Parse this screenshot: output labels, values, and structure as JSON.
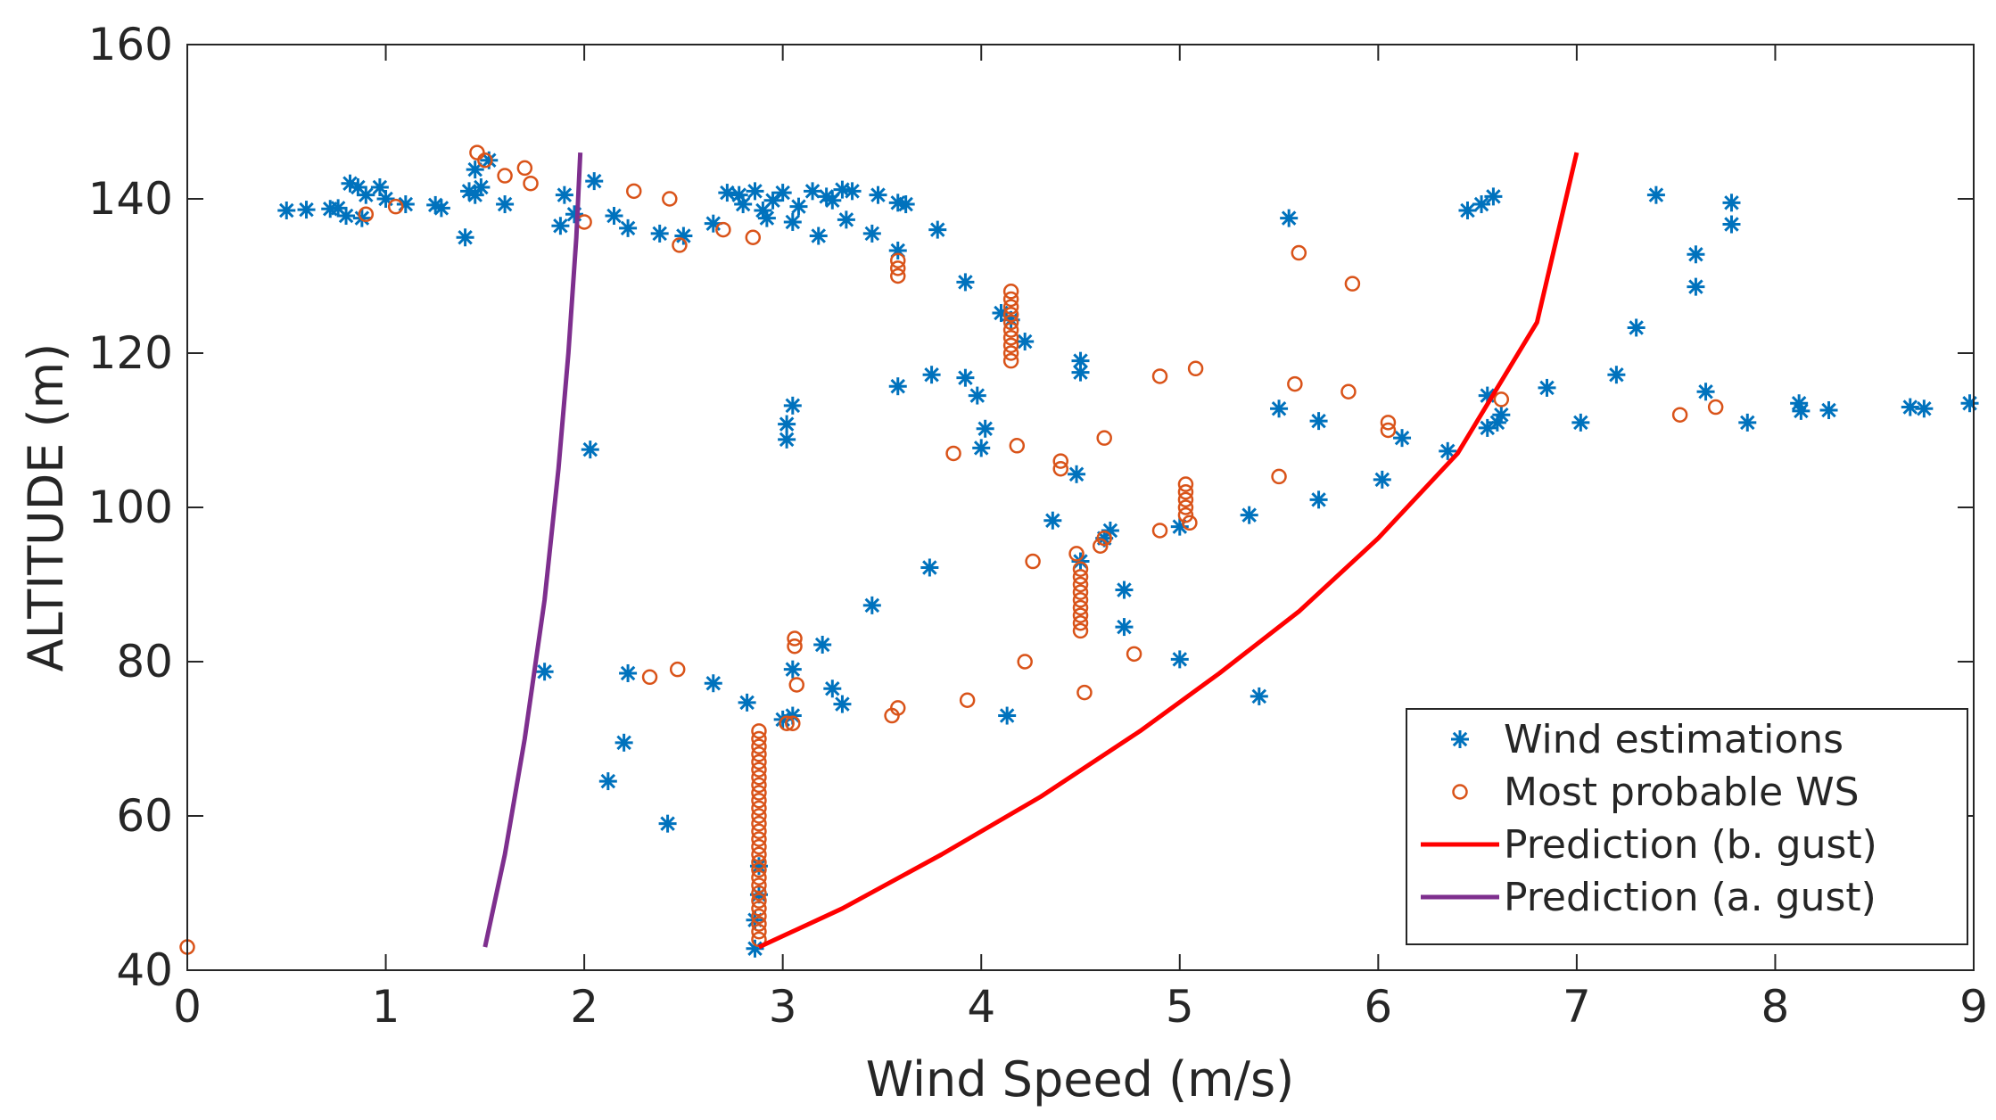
{
  "chart_data": {
    "type": "scatter",
    "xlabel": "Wind Speed (m/s)",
    "ylabel": "ALTITUDE (m)",
    "xlim": [
      0,
      9
    ],
    "ylim": [
      40,
      160
    ],
    "xticks": [
      "0",
      "1",
      "2",
      "3",
      "4",
      "5",
      "6",
      "7",
      "8",
      "9"
    ],
    "yticks": [
      "40",
      "60",
      "80",
      "100",
      "120",
      "140",
      "160"
    ],
    "grid": false,
    "legend_position": "bottom-right",
    "colors": {
      "estimations": "#0072BD",
      "most_probable": "#D95319",
      "prediction_b": "#FF0000",
      "prediction_a": "#7E2F8E",
      "axis": "#262626"
    },
    "series": [
      {
        "name": "Wind estimations",
        "kind": "scatter",
        "marker": "asterisk",
        "points": [
          [
            0.5,
            138.5
          ],
          [
            0.6,
            138.6
          ],
          [
            0.72,
            138.7
          ],
          [
            0.76,
            138.8
          ],
          [
            0.8,
            137.8
          ],
          [
            0.82,
            142.0
          ],
          [
            0.86,
            141.5
          ],
          [
            0.88,
            137.5
          ],
          [
            0.9,
            140.5
          ],
          [
            0.97,
            141.5
          ],
          [
            1.0,
            140.0
          ],
          [
            1.1,
            139.3
          ],
          [
            1.25,
            139.2
          ],
          [
            1.28,
            138.8
          ],
          [
            1.4,
            135.0
          ],
          [
            1.42,
            141.0
          ],
          [
            1.45,
            140.5
          ],
          [
            1.48,
            141.5
          ],
          [
            1.52,
            145.0
          ],
          [
            1.45,
            143.8
          ],
          [
            1.6,
            139.3
          ],
          [
            1.9,
            140.5
          ],
          [
            1.88,
            136.5
          ],
          [
            1.95,
            138.0
          ],
          [
            2.05,
            142.3
          ],
          [
            2.15,
            137.8
          ],
          [
            2.22,
            136.2
          ],
          [
            2.38,
            135.5
          ],
          [
            2.5,
            135.2
          ],
          [
            2.65,
            136.8
          ],
          [
            2.72,
            140.8
          ],
          [
            2.78,
            140.5
          ],
          [
            2.8,
            139.3
          ],
          [
            2.86,
            141.0
          ],
          [
            2.9,
            138.5
          ],
          [
            2.92,
            137.5
          ],
          [
            2.95,
            139.8
          ],
          [
            3.0,
            140.8
          ],
          [
            3.05,
            137.0
          ],
          [
            3.08,
            139.0
          ],
          [
            3.15,
            141.0
          ],
          [
            3.18,
            135.2
          ],
          [
            3.22,
            140.3
          ],
          [
            3.25,
            139.8
          ],
          [
            3.3,
            141.2
          ],
          [
            3.32,
            137.3
          ],
          [
            3.35,
            141.0
          ],
          [
            3.45,
            135.5
          ],
          [
            3.48,
            140.5
          ],
          [
            3.58,
            133.3
          ],
          [
            3.58,
            139.5
          ],
          [
            3.62,
            139.3
          ],
          [
            3.78,
            136.0
          ],
          [
            3.92,
            129.2
          ],
          [
            4.1,
            125.2
          ],
          [
            4.15,
            124.3
          ],
          [
            4.22,
            121.5
          ],
          [
            4.5,
            119.0
          ],
          [
            4.5,
            117.5
          ],
          [
            3.58,
            115.7
          ],
          [
            3.75,
            117.2
          ],
          [
            3.92,
            116.8
          ],
          [
            3.98,
            114.5
          ],
          [
            4.0,
            107.7
          ],
          [
            4.02,
            110.2
          ],
          [
            3.02,
            110.8
          ],
          [
            3.02,
            108.8
          ],
          [
            3.05,
            113.2
          ],
          [
            2.03,
            107.5
          ],
          [
            4.48,
            104.3
          ],
          [
            4.36,
            98.3
          ],
          [
            4.65,
            97.0
          ],
          [
            4.5,
            93.0
          ],
          [
            4.62,
            96.0
          ],
          [
            3.74,
            92.2
          ],
          [
            3.45,
            87.3
          ],
          [
            4.72,
            89.3
          ],
          [
            4.72,
            84.5
          ],
          [
            5.0,
            97.5
          ],
          [
            5.0,
            80.3
          ],
          [
            5.35,
            99.0
          ],
          [
            5.4,
            75.5
          ],
          [
            5.5,
            112.8
          ],
          [
            5.55,
            137.5
          ],
          [
            5.7,
            111.2
          ],
          [
            5.7,
            101.0
          ],
          [
            6.02,
            103.6
          ],
          [
            6.12,
            109.0
          ],
          [
            6.35,
            107.3
          ],
          [
            6.45,
            138.5
          ],
          [
            6.52,
            139.3
          ],
          [
            6.58,
            140.3
          ],
          [
            6.55,
            114.5
          ],
          [
            6.55,
            110.3
          ],
          [
            6.6,
            111.0
          ],
          [
            6.62,
            112.0
          ],
          [
            6.85,
            115.5
          ],
          [
            7.02,
            111.0
          ],
          [
            7.2,
            117.2
          ],
          [
            7.3,
            123.3
          ],
          [
            7.4,
            140.5
          ],
          [
            7.6,
            132.8
          ],
          [
            7.6,
            128.6
          ],
          [
            7.65,
            115.0
          ],
          [
            7.78,
            139.5
          ],
          [
            7.78,
            136.7
          ],
          [
            7.86,
            111.0
          ],
          [
            8.12,
            113.5
          ],
          [
            8.13,
            112.5
          ],
          [
            8.27,
            112.6
          ],
          [
            8.68,
            113.0
          ],
          [
            8.75,
            112.8
          ],
          [
            8.98,
            113.5
          ],
          [
            1.8,
            78.7
          ],
          [
            2.22,
            78.5
          ],
          [
            2.2,
            69.5
          ],
          [
            2.12,
            64.5
          ],
          [
            2.42,
            59.0
          ],
          [
            2.65,
            77.2
          ],
          [
            2.82,
            74.7
          ],
          [
            2.88,
            53.5
          ],
          [
            2.88,
            49.8
          ],
          [
            2.86,
            46.5
          ],
          [
            2.86,
            42.8
          ],
          [
            3.0,
            72.5
          ],
          [
            3.05,
            79.0
          ],
          [
            3.05,
            73.0
          ],
          [
            3.2,
            82.2
          ],
          [
            3.25,
            76.5
          ],
          [
            3.3,
            74.5
          ],
          [
            4.13,
            73.0
          ]
        ]
      },
      {
        "name": "Most probable WS",
        "kind": "scatter",
        "marker": "circle",
        "points": [
          [
            0.0,
            43.0
          ],
          [
            0.9,
            138.0
          ],
          [
            1.05,
            139.0
          ],
          [
            1.46,
            146.0
          ],
          [
            1.5,
            145.0
          ],
          [
            1.6,
            143.0
          ],
          [
            1.7,
            144.0
          ],
          [
            1.73,
            142.0
          ],
          [
            2.0,
            137.0
          ],
          [
            2.25,
            141.0
          ],
          [
            2.43,
            140.0
          ],
          [
            2.48,
            134.0
          ],
          [
            2.7,
            136.0
          ],
          [
            2.85,
            135.0
          ],
          [
            3.58,
            132.0
          ],
          [
            3.58,
            131.0
          ],
          [
            3.58,
            130.0
          ],
          [
            4.15,
            128.0
          ],
          [
            4.15,
            127.0
          ],
          [
            4.15,
            126.0
          ],
          [
            4.15,
            125.0
          ],
          [
            4.15,
            124.0
          ],
          [
            4.15,
            123.0
          ],
          [
            4.15,
            122.0
          ],
          [
            4.15,
            121.0
          ],
          [
            4.15,
            120.0
          ],
          [
            4.15,
            119.0
          ],
          [
            3.86,
            107.0
          ],
          [
            4.18,
            108.0
          ],
          [
            4.4,
            106.0
          ],
          [
            4.4,
            105.0
          ],
          [
            4.62,
            109.0
          ],
          [
            4.9,
            117.0
          ],
          [
            5.08,
            118.0
          ],
          [
            5.58,
            116.0
          ],
          [
            5.6,
            133.0
          ],
          [
            5.87,
            129.0
          ],
          [
            5.85,
            115.0
          ],
          [
            6.05,
            111.0
          ],
          [
            6.05,
            110.0
          ],
          [
            6.62,
            114.0
          ],
          [
            7.52,
            112.0
          ],
          [
            7.7,
            113.0
          ],
          [
            5.5,
            104.0
          ],
          [
            4.9,
            97.0
          ],
          [
            4.6,
            95.0
          ],
          [
            4.62,
            96.0
          ],
          [
            5.03,
            103.0
          ],
          [
            5.03,
            102.0
          ],
          [
            5.03,
            101.0
          ],
          [
            5.03,
            100.0
          ],
          [
            5.03,
            99.0
          ],
          [
            5.05,
            98.0
          ],
          [
            4.48,
            94.0
          ],
          [
            4.5,
            92.0
          ],
          [
            4.5,
            91.0
          ],
          [
            4.5,
            90.0
          ],
          [
            4.5,
            89.0
          ],
          [
            4.5,
            88.0
          ],
          [
            4.5,
            87.0
          ],
          [
            4.5,
            86.0
          ],
          [
            4.5,
            85.0
          ],
          [
            4.5,
            84.0
          ],
          [
            4.26,
            93.0
          ],
          [
            4.22,
            80.0
          ],
          [
            4.77,
            81.0
          ],
          [
            4.52,
            76.0
          ],
          [
            3.93,
            75.0
          ],
          [
            3.58,
            74.0
          ],
          [
            3.55,
            73.0
          ],
          [
            3.06,
            83.0
          ],
          [
            3.06,
            82.0
          ],
          [
            3.07,
            77.0
          ],
          [
            3.02,
            72.0
          ],
          [
            3.05,
            72.0
          ],
          [
            2.33,
            78.0
          ],
          [
            2.47,
            79.0
          ],
          [
            2.88,
            71.0
          ],
          [
            2.88,
            70.0
          ],
          [
            2.88,
            69.0
          ],
          [
            2.88,
            68.0
          ],
          [
            2.88,
            67.0
          ],
          [
            2.88,
            66.0
          ],
          [
            2.88,
            65.0
          ],
          [
            2.88,
            64.0
          ],
          [
            2.88,
            63.0
          ],
          [
            2.88,
            62.0
          ],
          [
            2.88,
            61.0
          ],
          [
            2.88,
            60.0
          ],
          [
            2.88,
            59.0
          ],
          [
            2.88,
            58.0
          ],
          [
            2.88,
            57.0
          ],
          [
            2.88,
            56.0
          ],
          [
            2.88,
            55.0
          ],
          [
            2.88,
            54.0
          ],
          [
            2.88,
            53.0
          ],
          [
            2.88,
            52.0
          ],
          [
            2.88,
            51.0
          ],
          [
            2.88,
            50.0
          ],
          [
            2.88,
            49.0
          ],
          [
            2.88,
            48.0
          ],
          [
            2.88,
            47.0
          ],
          [
            2.88,
            46.0
          ],
          [
            2.88,
            45.0
          ],
          [
            2.88,
            44.0
          ]
        ]
      },
      {
        "name": "Prediction (b. gust)",
        "kind": "line",
        "points": [
          [
            2.88,
            43.0
          ],
          [
            3.3,
            48.0
          ],
          [
            3.8,
            55.0
          ],
          [
            4.3,
            62.5
          ],
          [
            4.8,
            71.0
          ],
          [
            5.2,
            78.5
          ],
          [
            5.6,
            86.5
          ],
          [
            6.0,
            96.0
          ],
          [
            6.4,
            107.0
          ],
          [
            6.8,
            124.0
          ],
          [
            7.0,
            146.0
          ]
        ]
      },
      {
        "name": "Prediction (a. gust)",
        "kind": "line",
        "points": [
          [
            1.5,
            43.0
          ],
          [
            1.6,
            55.0
          ],
          [
            1.7,
            70.0
          ],
          [
            1.8,
            88.0
          ],
          [
            1.87,
            105.0
          ],
          [
            1.92,
            120.0
          ],
          [
            1.96,
            135.0
          ],
          [
            1.98,
            146.0
          ]
        ]
      }
    ]
  }
}
